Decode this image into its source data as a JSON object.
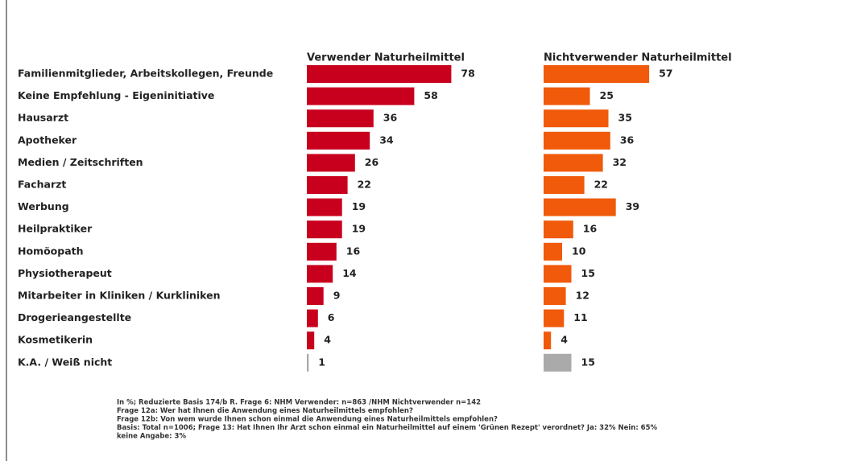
{
  "chart_data": {
    "type": "bar",
    "categories": [
      "Familienmitglieder, Arbeitskollegen, Freunde",
      "Keine Empfehlung -  Eigeninitiative",
      "Hausarzt",
      "Apotheker",
      "Medien / Zeitschriften",
      "Facharzt",
      "Werbung",
      "Heilpraktiker",
      "Homöopath",
      "Physiotherapeut",
      "Mitarbeiter in Kliniken / Kurkliniken",
      "Drogerieangestellte",
      "Kosmetikerin",
      "K.A. / Weiß nicht"
    ],
    "series": [
      {
        "name": "Verwender Naturheilmittel",
        "color": "#c8001e",
        "colors": [
          "#c8001e",
          "#c8001e",
          "#c8001e",
          "#c8001e",
          "#c8001e",
          "#c8001e",
          "#c8001e",
          "#c8001e",
          "#c8001e",
          "#c8001e",
          "#c8001e",
          "#c8001e",
          "#c8001e",
          "#aaaaaa"
        ],
        "values": [
          78,
          58,
          36,
          34,
          26,
          22,
          19,
          19,
          16,
          14,
          9,
          6,
          4,
          1
        ]
      },
      {
        "name": "Nichtverwender Naturheilmittel",
        "color": "#f05a0a",
        "colors": [
          "#f05a0a",
          "#f05a0a",
          "#f05a0a",
          "#f05a0a",
          "#f05a0a",
          "#f05a0a",
          "#f05a0a",
          "#f05a0a",
          "#f05a0a",
          "#f05a0a",
          "#f05a0a",
          "#f05a0a",
          "#f05a0a",
          "#aaaaaa"
        ],
        "values": [
          57,
          25,
          35,
          36,
          32,
          22,
          39,
          16,
          10,
          15,
          12,
          11,
          4,
          15
        ]
      }
    ],
    "footnotes": [
      "In %; Reduzierte Basis 174/b R. Frage 6: NHM Verwender: n=863 /NHM Nichtverwender n=142",
      "Frage 12a: Wer hat Ihnen die Anwendung eines Naturheilmittels empfohlen?",
      "Frage 12b: Von wem wurde Ihnen schon einmal die Anwendung eines Naturheilmittels empfohlen?",
      "Basis: Total n=1006; Frage 13: Hat Ihnen Ihr Arzt schon einmal ein Naturheilmittel auf einem 'Grünen Rezept' verordnet? Ja: 32% Nein: 65%",
      "keine Angabe: 3%"
    ]
  }
}
